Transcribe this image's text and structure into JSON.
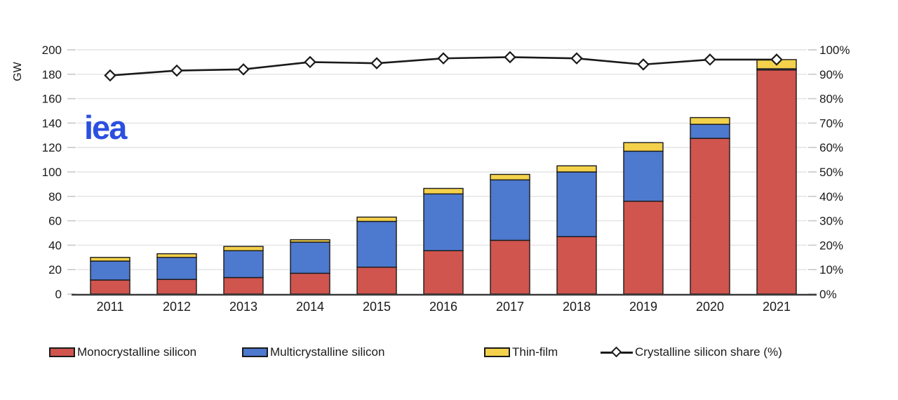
{
  "chart_data": {
    "type": "bar",
    "subtype": "stacked-bars-with-line",
    "title": "",
    "years": [
      "2011",
      "2012",
      "2013",
      "2014",
      "2015",
      "2016",
      "2017",
      "2018",
      "2019",
      "2020",
      "2021"
    ],
    "series": [
      {
        "name": "Monocrystalline silicon",
        "type": "bar",
        "axis": "left",
        "color": "#d0554e",
        "values": [
          11.5,
          12,
          13.5,
          17,
          22,
          35.5,
          44,
          47,
          76,
          127.5,
          183.5
        ]
      },
      {
        "name": "Multicrystalline silicon",
        "type": "bar",
        "axis": "left",
        "color": "#4d79ce",
        "values": [
          15.5,
          18,
          22,
          25.5,
          37.5,
          46.5,
          49.5,
          53,
          41,
          11.5,
          1
        ]
      },
      {
        "name": "Thin-film",
        "type": "bar",
        "axis": "left",
        "color": "#f3d14b",
        "values": [
          3,
          3,
          3.5,
          2,
          3.5,
          4.5,
          4.5,
          5,
          7,
          5.5,
          7.5
        ]
      },
      {
        "name": "Crystalline silicon share (%)",
        "type": "line",
        "axis": "right",
        "color": "#1a1a1a",
        "marker": "diamond",
        "values": [
          89.5,
          91.5,
          92,
          95,
          94.5,
          96.5,
          97,
          96.5,
          94,
          96,
          96
        ]
      }
    ],
    "left_axis": {
      "label": "GW",
      "min": 0,
      "max": 200,
      "step": 20
    },
    "right_axis": {
      "min": 0,
      "max": 100,
      "step": 10,
      "suffix": "%"
    },
    "grid": true,
    "legend_position": "bottom"
  },
  "logo": {
    "text": "iea"
  }
}
